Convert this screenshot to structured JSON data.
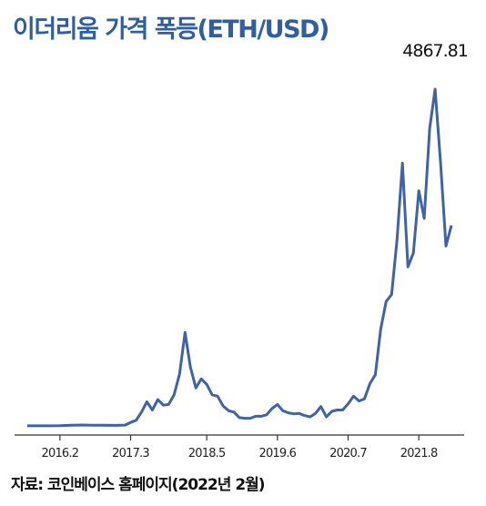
{
  "header": {
    "title": "이더리움 가격 폭등(ETH/USD)"
  },
  "footer": {
    "source": "자료: 코인베이스 홈페이지(2022년 2월)"
  },
  "chart_data": {
    "type": "line",
    "title": "이더리움 가격 폭등(ETH/USD)",
    "xlabel": "",
    "ylabel": "",
    "ylim": [
      0,
      5000
    ],
    "x_ticks": [
      "2016.2",
      "2017.3",
      "2018.5",
      "2019.6",
      "2020.7",
      "2021.8"
    ],
    "annotation": {
      "label": "4867.81",
      "value": 4867.81
    },
    "grid": false,
    "color": "#3e63a8",
    "series": [
      {
        "x": [
          "2015.08",
          "2015.10",
          "2015.12",
          "2016.02",
          "2016.04",
          "2016.06",
          "2016.08",
          "2016.10",
          "2016.12",
          "2017.02",
          "2017.03",
          "2017.04",
          "2017.05",
          "2017.06",
          "2017.07",
          "2017.08",
          "2017.09",
          "2017.10",
          "2017.11",
          "2017.12",
          "2018.01",
          "2018.02",
          "2018.03",
          "2018.04",
          "2018.05",
          "2018.06",
          "2018.07",
          "2018.08",
          "2018.09",
          "2018.10",
          "2018.11",
          "2018.12",
          "2019.01",
          "2019.02",
          "2019.03",
          "2019.04",
          "2019.05",
          "2019.06",
          "2019.07",
          "2019.08",
          "2019.09",
          "2019.10",
          "2019.11",
          "2019.12",
          "2020.01",
          "2020.02",
          "2020.03",
          "2020.04",
          "2020.05",
          "2020.06",
          "2020.07",
          "2020.08",
          "2020.09",
          "2020.10",
          "2020.11",
          "2020.12",
          "2021.01",
          "2021.02",
          "2021.03",
          "2021.04",
          "2021.05",
          "2021.06",
          "2021.07",
          "2021.08",
          "2021.09",
          "2021.10",
          "2021.11",
          "2021.12",
          "2022.01",
          "2022.02"
        ],
        "values": [
          1,
          1,
          1,
          3,
          9,
          13,
          11,
          11,
          8,
          12,
          50,
          80,
          200,
          350,
          230,
          380,
          300,
          310,
          450,
          750,
          1350,
          850,
          550,
          680,
          600,
          450,
          430,
          290,
          220,
          200,
          120,
          110,
          110,
          140,
          140,
          160,
          250,
          310,
          220,
          190,
          175,
          180,
          150,
          130,
          180,
          280,
          130,
          210,
          230,
          230,
          320,
          430,
          360,
          390,
          610,
          740,
          1400,
          1800,
          1900,
          2700,
          3800,
          2300,
          2500,
          3400,
          3000,
          4300,
          4867.81,
          3800,
          2600,
          2900
        ]
      }
    ]
  }
}
